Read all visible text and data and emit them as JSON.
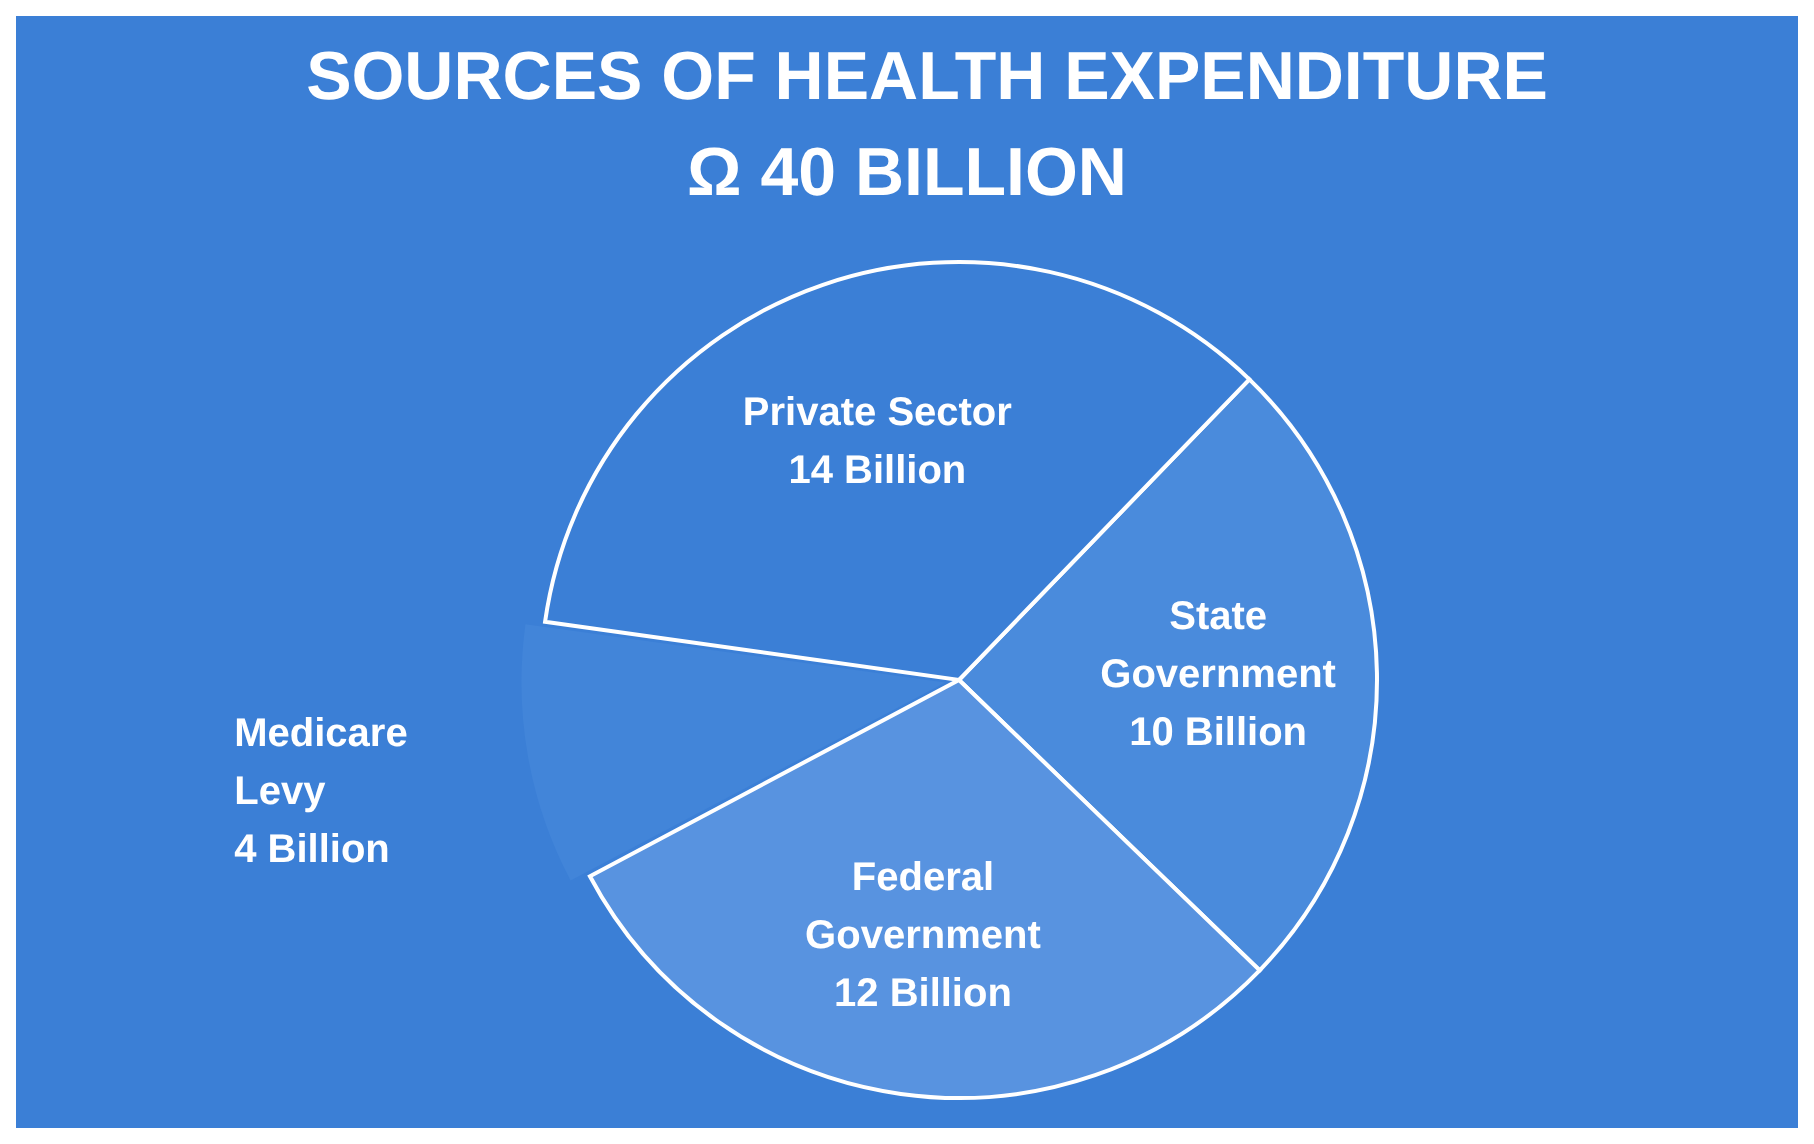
{
  "chart_data": {
    "type": "pie",
    "title": "SOURCES OF HEALTH EXPENDITURE",
    "subtitle": "Ω 40 BILLION",
    "categories": [
      "State Government",
      "Federal Government",
      "Medicare Levy",
      "Private Sector"
    ],
    "values": [
      10,
      12,
      4,
      14
    ],
    "value_labels": [
      "10 Billion",
      "12 Billion",
      "4 Billion",
      "14 Billion"
    ],
    "colors": [
      "#4a8bdc",
      "#5893e0",
      "#4285d9",
      "#3b7fd6"
    ],
    "legend": false
  }
}
